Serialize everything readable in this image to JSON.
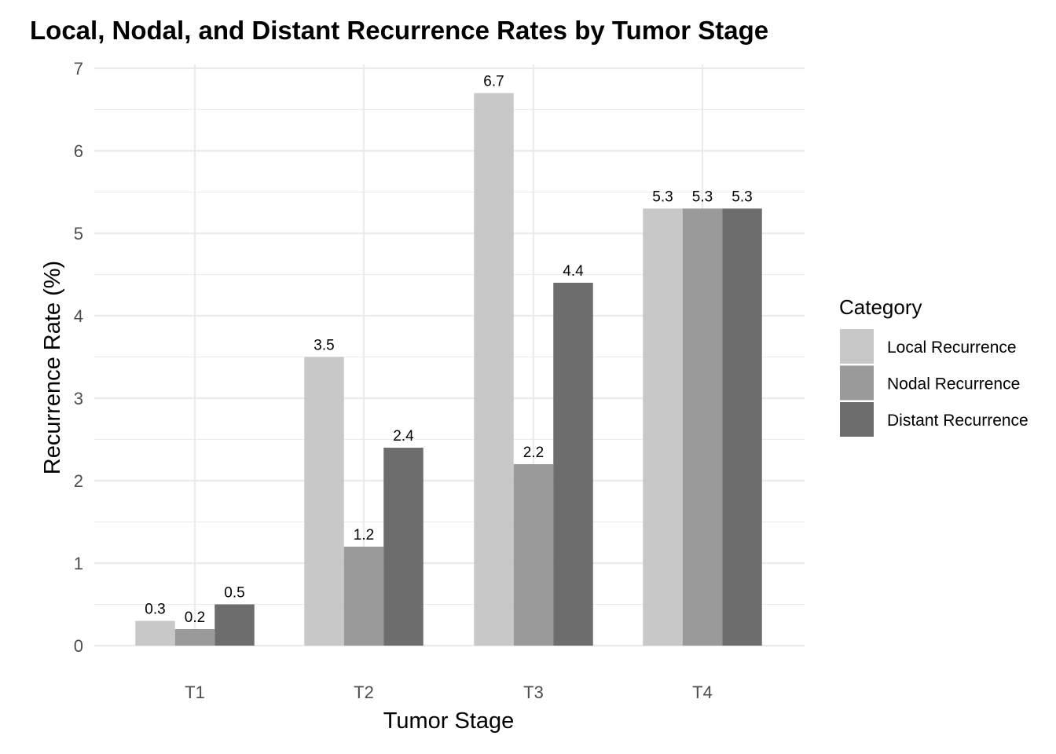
{
  "chart_data": {
    "type": "bar",
    "title": "Local, Nodal, and Distant Recurrence Rates by Tumor Stage",
    "xlabel": "Tumor Stage",
    "ylabel": "Recurrence Rate (%)",
    "categories": [
      "T1",
      "T2",
      "T3",
      "T4"
    ],
    "series": [
      {
        "name": "Local Recurrence",
        "color": "#c8c8c8",
        "values": [
          0.3,
          3.5,
          6.7,
          5.3
        ],
        "labels": [
          "0.3",
          "3.5",
          "6.7",
          "5.3"
        ]
      },
      {
        "name": "Nodal Recurrence",
        "color": "#9a9a9a",
        "values": [
          0.2,
          1.2,
          2.2,
          5.3
        ],
        "labels": [
          "0.2",
          "1.2",
          "2.2",
          "5.3"
        ]
      },
      {
        "name": "Distant Recurrence",
        "color": "#6d6d6d",
        "values": [
          0.5,
          2.4,
          4.4,
          5.3
        ],
        "labels": [
          "0.5",
          "2.4",
          "4.4",
          "5.3"
        ]
      }
    ],
    "ylim": [
      0,
      7
    ],
    "yticks": [
      "0",
      "1",
      "2",
      "3",
      "4",
      "5",
      "6",
      "7"
    ],
    "grid": true,
    "legend": {
      "title": "Category",
      "position": "right"
    }
  }
}
